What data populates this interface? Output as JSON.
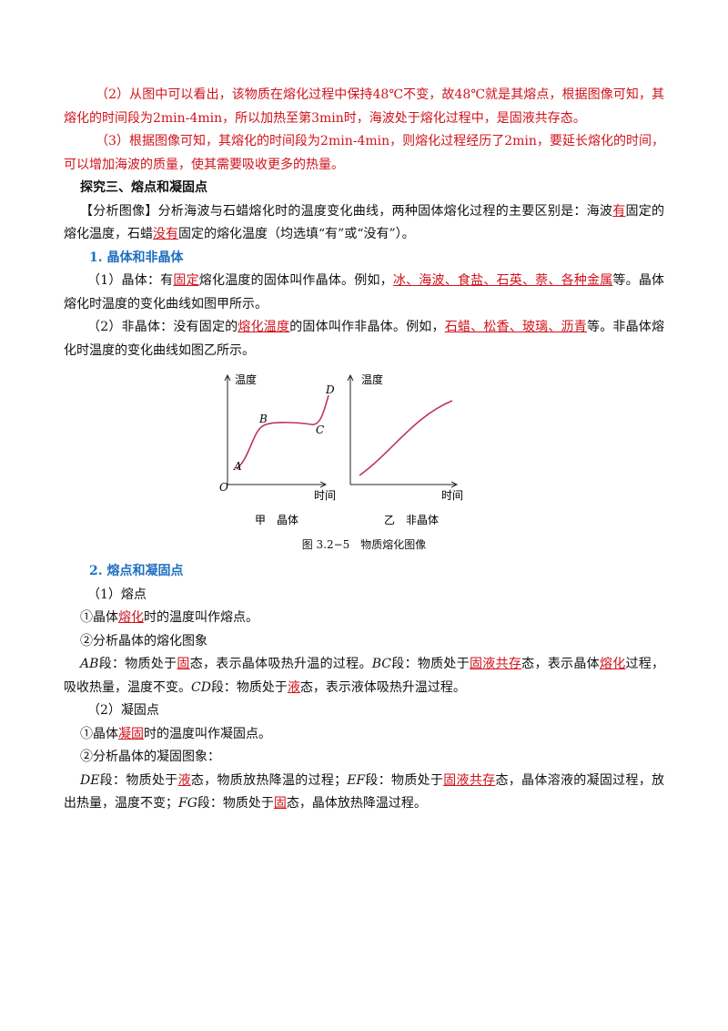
{
  "paragraphs": [
    [
      "（2）从图中可以看出，该物质在熔化过程中保持48℃不变，故48℃就是其熔点，根据图像可知，其熔化的时间段为2min-4min，所以加热至第3min时，海波处于熔化过程中，是固液共存态。"
    ],
    [
      "（3）根据图像可知，其熔化的时间段为2min-4min，则熔化过程经历了2min，要延长熔化的时间，可以增加海波的质量，使其需要吸收更多的热量。"
    ],
    [
      "探究三、熔点和凝固点"
    ],
    [
      "【分析图像】分析海波与石蜡熔化时的温度变化曲线，两种固体熔化过程的主要区别是：海波",
      "有",
      "固定的熔化温度，石蜡",
      "没有",
      "固定的熔化温度（均选填“有”或“没有”）。"
    ],
    [
      "1. 晶体和非晶体"
    ],
    [
      "（1）晶体：有",
      "固定",
      "熔化温度的固体叫作晶体。例如，",
      "冰、海波、食盐、石英、萘、各种金属",
      "等。晶体熔化时温度的变化曲线如图甲所示。"
    ],
    [
      "（2）非晶体：没有固定的",
      "熔化温度",
      "的固体叫作非晶体。例如，",
      "石蜡、松香、玻璃、沥青",
      "等。非晶体熔化时温度的变化曲线如图乙所示。"
    ],
    [
      "2. 熔点和凝固点"
    ],
    [
      "（1）熔点"
    ],
    [
      "①晶体",
      "熔化",
      "时的温度叫作熔点。"
    ],
    [
      "②分析晶体的熔化图象"
    ],
    [
      "AB",
      "段：物质处于",
      "固",
      "态，表示晶体吸热升温的过程。",
      "BC",
      "段：物质处于",
      "固液共存",
      "态，表示晶体",
      "熔化",
      "过程，吸收热量，温度不变。",
      "CD",
      "段：物质处于",
      "液",
      "态，表示液体吸热升温过程。"
    ],
    [
      "（2）凝固点"
    ],
    [
      "①晶体",
      "凝固",
      "时的温度叫作凝固点。"
    ],
    [
      "②分析晶体的凝固图象："
    ],
    [
      "DE",
      "段：物质处于",
      "液",
      "态，物质放热降温的过程；",
      "EF",
      "段：物质处于",
      "固液共存",
      "态，晶体溶液的凝固过程，放出热量，温度不变；",
      "FG",
      "段：物质处于",
      "固",
      "态，晶体放热降温过程。"
    ]
  ],
  "figure": {
    "panels": [
      {
        "y_label": "温度",
        "x_label": "时间",
        "origin": "O",
        "points": [
          "A",
          "B",
          "C",
          "D"
        ],
        "caption": "甲　晶体"
      },
      {
        "y_label": "温度",
        "x_label": "时间",
        "caption": "乙　非晶体"
      }
    ],
    "caption": "图 3.2−5　物质熔化图像"
  }
}
